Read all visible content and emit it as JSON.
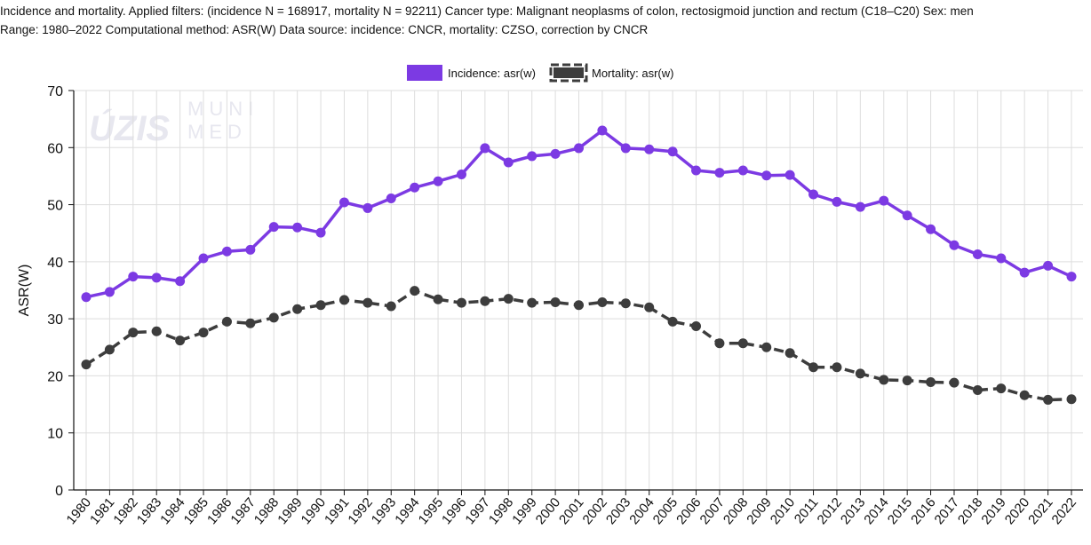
{
  "caption": {
    "line1": "Incidence and mortality. Applied filters: (incidence N = 168917, mortality N = 92211) Cancer type: Malignant neoplasms of colon, rectosigmoid junction and rectum (C18–C20) Sex: men",
    "line2": "Range: 1980–2022 Computational method: ASR(W) Data source: incidence: CNCR, mortality: CZSO, correction by CNCR"
  },
  "watermark": {
    "left": "ÚZIS",
    "right_top": "MUNI",
    "right_bottom": "MED"
  },
  "colors": {
    "incidence": "#7c3ae3",
    "mortality": "#3d3d3d",
    "grid": "#dddddd",
    "axis": "#111111"
  },
  "chart_data": {
    "type": "line",
    "ylabel": "ASR(W)",
    "ylim": [
      0,
      70
    ],
    "yticks": [
      0,
      10,
      20,
      30,
      40,
      50,
      60,
      70
    ],
    "grid": true,
    "legend_position": "top-center",
    "x": [
      "1980",
      "1981",
      "1982",
      "1983",
      "1984",
      "1985",
      "1986",
      "1987",
      "1988",
      "1989",
      "1990",
      "1991",
      "1992",
      "1993",
      "1994",
      "1995",
      "1996",
      "1997",
      "1998",
      "1999",
      "2000",
      "2001",
      "2002",
      "2003",
      "2004",
      "2005",
      "2006",
      "2007",
      "2008",
      "2009",
      "2010",
      "2011",
      "2012",
      "2013",
      "2014",
      "2015",
      "2016",
      "2017",
      "2018",
      "2019",
      "2020",
      "2021",
      "2022"
    ],
    "series": [
      {
        "name": "Incidence: asr(w)",
        "style": "solid",
        "values": [
          33.8,
          34.7,
          37.4,
          37.2,
          36.6,
          40.6,
          41.8,
          42.1,
          46.1,
          46.0,
          45.1,
          50.4,
          49.4,
          51.1,
          53.0,
          54.1,
          55.3,
          59.9,
          57.4,
          58.5,
          58.9,
          59.9,
          63.0,
          59.9,
          59.7,
          59.3,
          56.0,
          55.6,
          56.0,
          55.1,
          55.2,
          51.8,
          50.5,
          49.6,
          50.7,
          48.1,
          45.7,
          42.9,
          41.3,
          40.6,
          38.1,
          39.3,
          37.4
        ]
      },
      {
        "name": "Mortality: asr(w)",
        "style": "dashed",
        "values": [
          22.0,
          24.6,
          27.6,
          27.8,
          26.2,
          27.6,
          29.5,
          29.2,
          30.2,
          31.7,
          32.4,
          33.3,
          32.8,
          32.2,
          34.9,
          33.4,
          32.8,
          33.1,
          33.5,
          32.8,
          32.9,
          32.4,
          32.9,
          32.7,
          32.0,
          29.5,
          28.7,
          25.7,
          25.7,
          25.0,
          24.0,
          21.5,
          21.5,
          20.4,
          19.3,
          19.2,
          18.9,
          18.8,
          17.5,
          17.8,
          16.6,
          15.8,
          15.9
        ]
      }
    ]
  }
}
